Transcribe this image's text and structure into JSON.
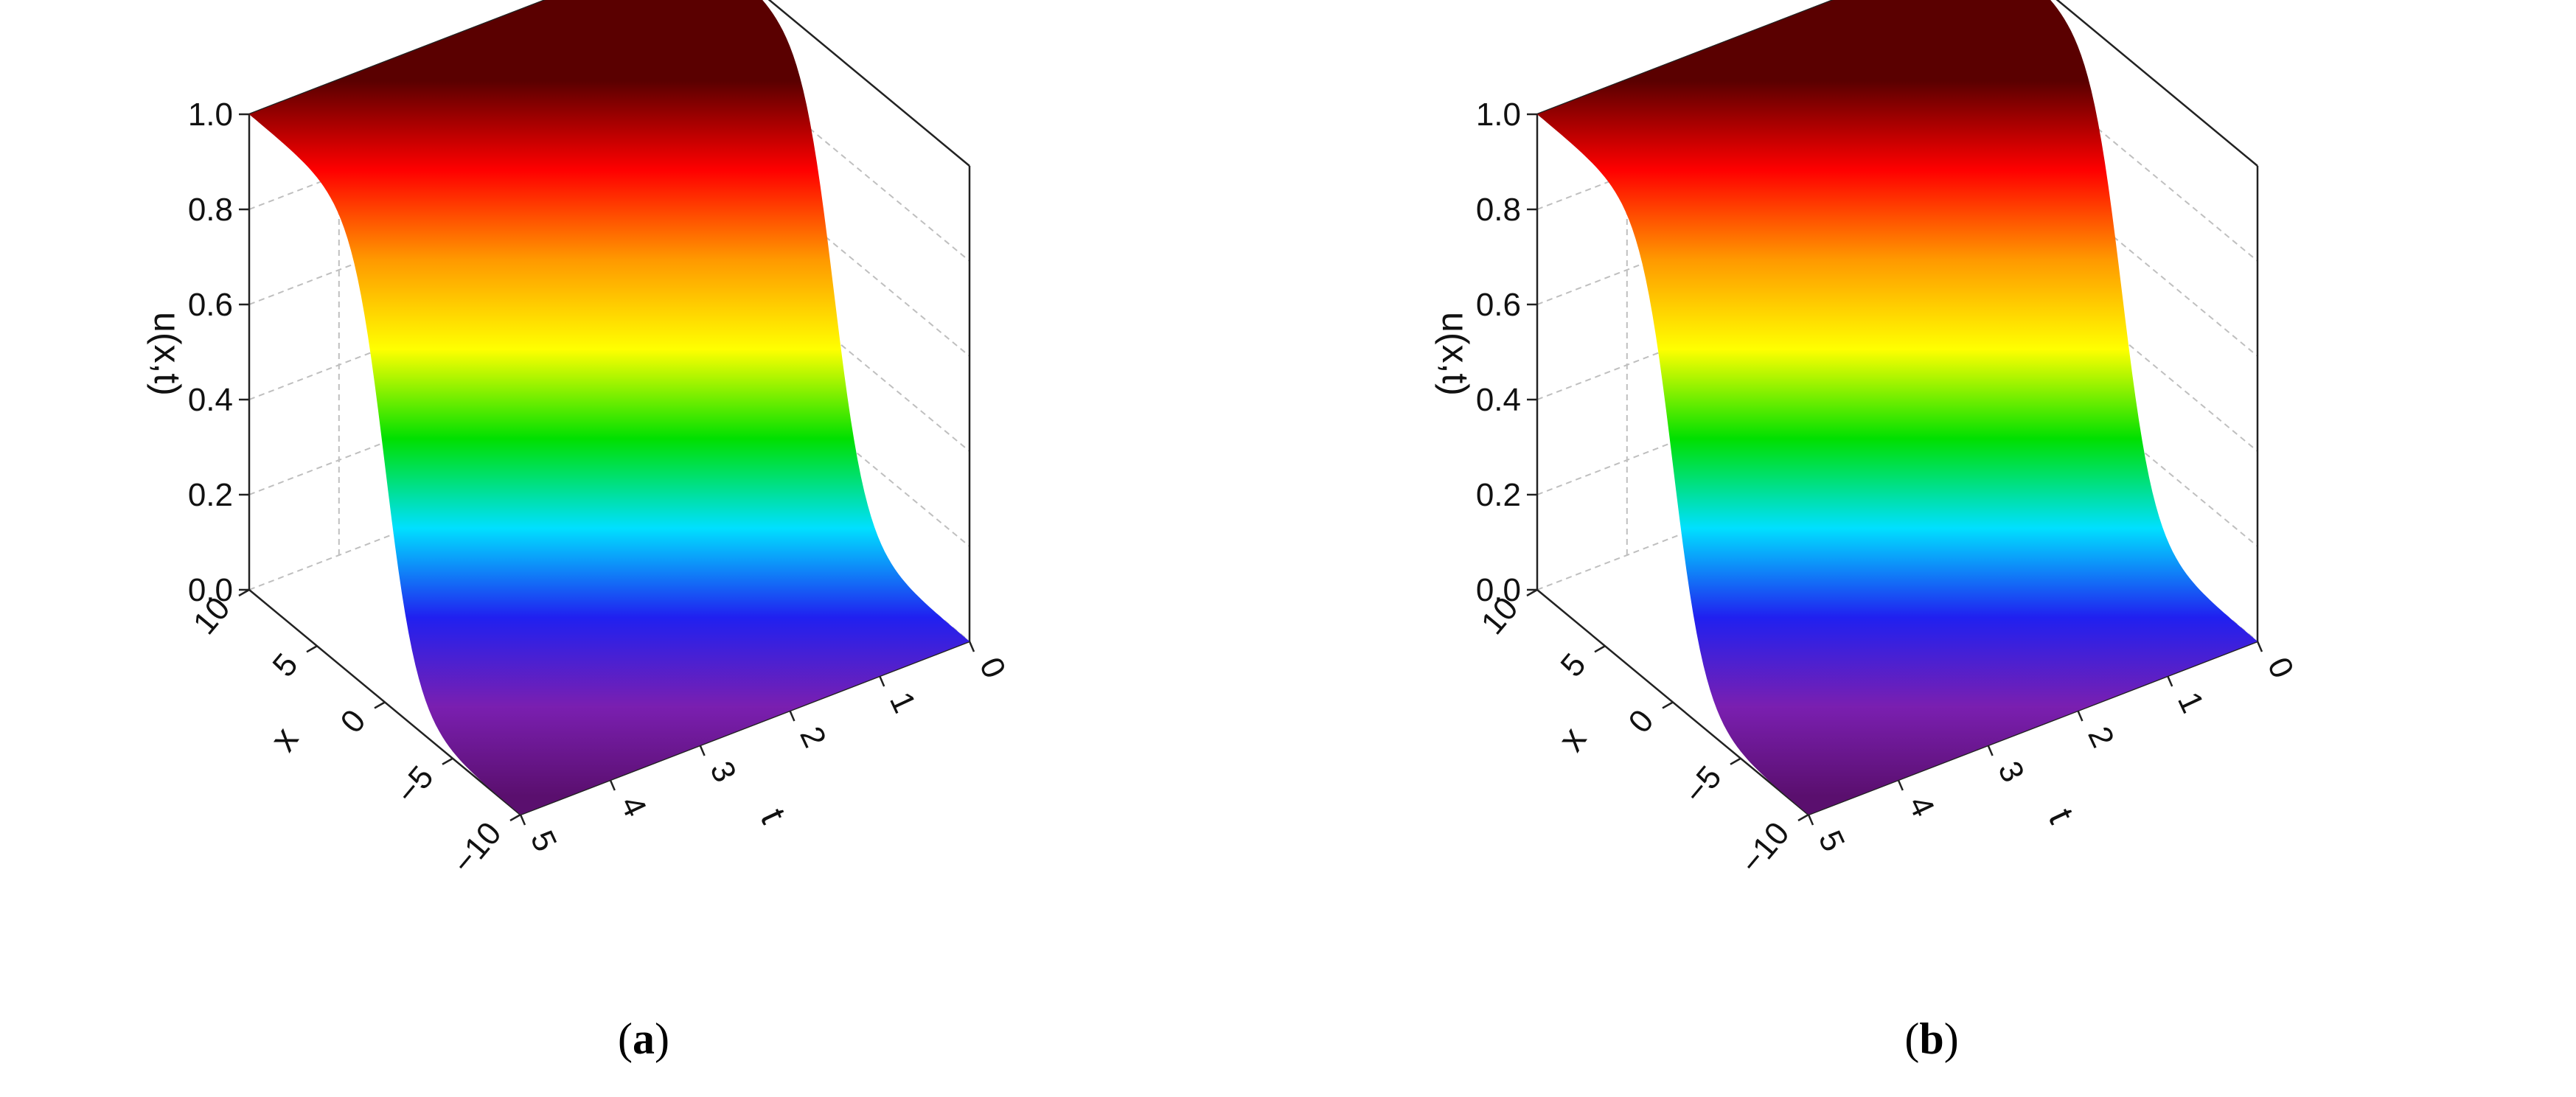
{
  "chart_data": [
    {
      "type": "surface",
      "caption": "(a)",
      "caption_letter": "a",
      "zlabel": "u(x,t)",
      "xlabel": "x",
      "tlabel": "t",
      "x_ticks": [
        "10",
        "5",
        "0",
        "−5",
        "−10"
      ],
      "t_ticks": [
        "0",
        "1",
        "2",
        "3",
        "4",
        "5"
      ],
      "z_ticks": [
        "0.0",
        "0.2",
        "0.4",
        "0.6",
        "0.8",
        "1.0"
      ],
      "x_range": [
        -10,
        10
      ],
      "t_range": [
        0,
        5
      ],
      "z_range": [
        0.0,
        1.0
      ],
      "profile": "kink: u rises from 0.0 at x = -10 to 1.0 at x = 10, constant in t",
      "colormap": [
        "#5a0f6e",
        "#7a1fb0",
        "#2020f0",
        "#00e0ff",
        "#00e000",
        "#ffff00",
        "#ff9900",
        "#ff0000",
        "#5a0000"
      ]
    },
    {
      "type": "surface",
      "caption": "(b)",
      "caption_letter": "b",
      "zlabel": "u(x,t)",
      "xlabel": "x",
      "tlabel": "t",
      "x_ticks": [
        "10",
        "5",
        "0",
        "−5",
        "−10"
      ],
      "t_ticks": [
        "0",
        "1",
        "2",
        "3",
        "4",
        "5"
      ],
      "z_ticks": [
        "0.0",
        "0.2",
        "0.4",
        "0.6",
        "0.8",
        "1.0"
      ],
      "x_range": [
        -10,
        10
      ],
      "t_range": [
        0,
        5
      ],
      "z_range": [
        0.0,
        1.0
      ],
      "profile": "kink: u rises from 0.0 at x = -10 to 1.0 at x = 10, constant in t",
      "colormap": [
        "#5a0f6e",
        "#7a1fb0",
        "#2020f0",
        "#00e0ff",
        "#00e000",
        "#ffff00",
        "#ff9900",
        "#ff0000",
        "#5a0000"
      ]
    }
  ]
}
